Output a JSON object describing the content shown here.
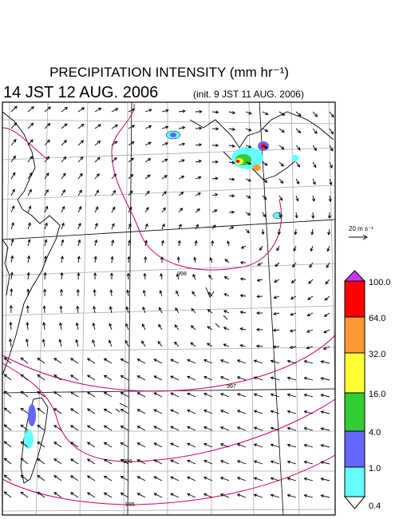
{
  "header": {
    "title": "PRECIPITATION INTENSITY (mm hr⁻¹)",
    "valid_time": "14 JST 12 AUG. 2006",
    "init_time": "(init. 9 JST 11 AUG. 2006)"
  },
  "vector_legend": {
    "label": "20 m s⁻¹"
  },
  "colorbar": {
    "labels": [
      "100.0",
      "64.0",
      "32.0",
      "16.0",
      "4.0",
      "1.0",
      "0.4"
    ],
    "colors": [
      "#cc33ff",
      "#ff0000",
      "#ff9933",
      "#ffff33",
      "#33cc33",
      "#6666ff",
      "#66ffff",
      "#ffffff"
    ]
  },
  "contours": {
    "labels": [
      "998",
      "997",
      "996",
      "995"
    ]
  }
}
